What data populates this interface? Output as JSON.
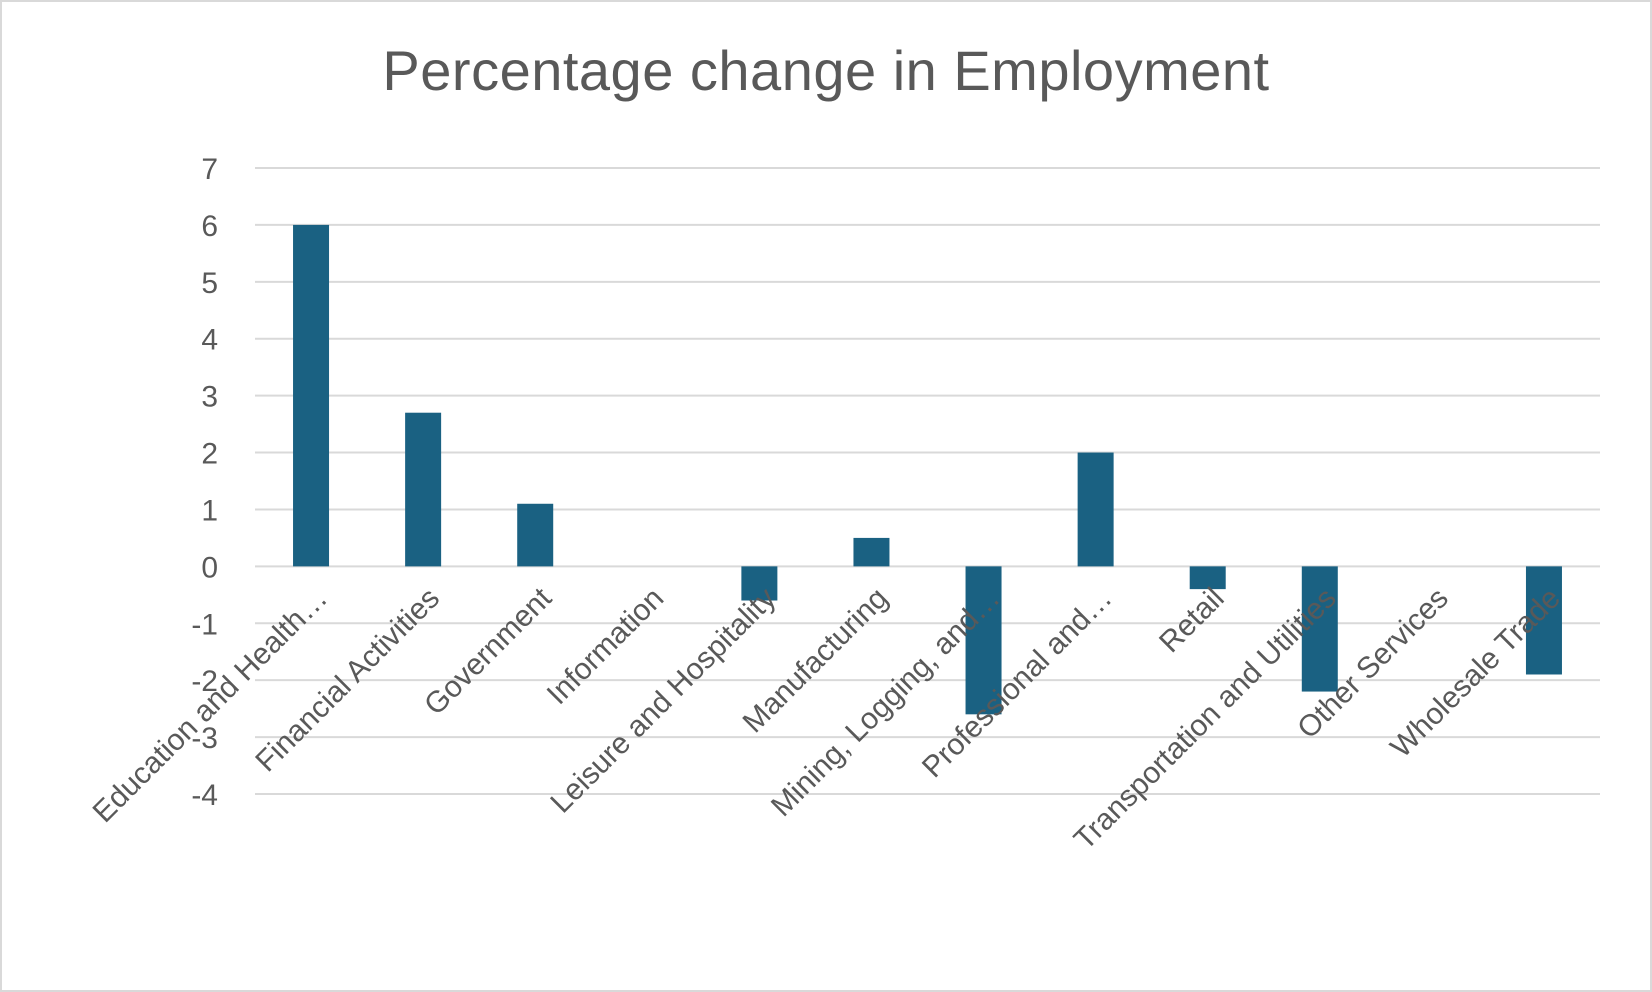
{
  "chart_data": {
    "type": "bar",
    "title": "Percentage change in Employment",
    "xlabel": "",
    "ylabel": "",
    "categories": [
      "Education and Health…",
      "Financial Activities",
      "Government",
      "Information",
      "Leisure and Hospitality",
      "Manufacturing",
      "Mining, Logging, and…",
      "Professional and…",
      "Retail",
      "Transportation and Utilities",
      "Other Services",
      "Wholesale Trade"
    ],
    "values": [
      6,
      2.7,
      1.1,
      0,
      -0.6,
      0.5,
      -2.6,
      2,
      -0.4,
      -2.2,
      0,
      -1.9
    ],
    "ylim": [
      -4,
      7
    ],
    "yticks": [
      "-4",
      "-3",
      "-2",
      "-1",
      "0",
      "1",
      "2",
      "3",
      "4",
      "5",
      "6",
      "7"
    ],
    "grid": true,
    "legend": "none",
    "bar_color": "#1a6182",
    "grid_color": "#d9d9d9",
    "text_color": "#595959"
  }
}
